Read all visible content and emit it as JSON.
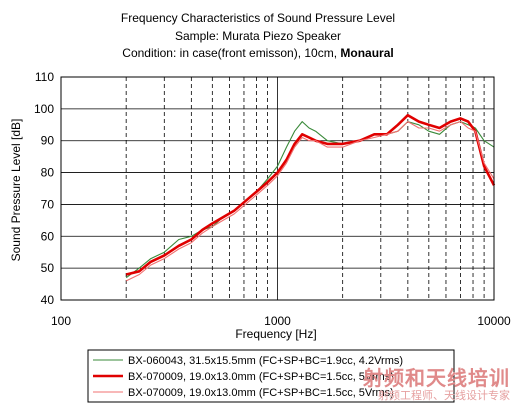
{
  "chart_data": {
    "type": "line",
    "title_lines": [
      {
        "text": "Frequency Characteristics of Sound Pressure Level",
        "bold_part": ""
      },
      {
        "text": "Sample: Murata Piezo Speaker",
        "bold_part": ""
      },
      {
        "text": "Condition:  in case(front emisson), 10cm, ",
        "bold_part": "Monaural"
      }
    ],
    "xlabel": "Frequency  [Hz]",
    "ylabel": "Sound Pressure Level  [dB]",
    "xscale": "log",
    "xlim": [
      100,
      10000
    ],
    "ylim": [
      40,
      110
    ],
    "x_ticks": [
      100,
      1000,
      10000
    ],
    "x_tick_labels": [
      "100",
      "1000",
      "10000"
    ],
    "y_ticks": [
      40,
      50,
      60,
      70,
      80,
      90,
      100,
      110
    ],
    "grid": true,
    "legend_position": "bottom",
    "series": [
      {
        "name": "BX-060043, 31.5x15.5mm (FC+SP+BC=1.9cc, 4.2Vrms)",
        "color": "#3a8a3a",
        "style": "thin",
        "points": [
          [
            200,
            47
          ],
          [
            230,
            50
          ],
          [
            260,
            53
          ],
          [
            300,
            55
          ],
          [
            350,
            59
          ],
          [
            400,
            60
          ],
          [
            450,
            62
          ],
          [
            500,
            63
          ],
          [
            560,
            66
          ],
          [
            630,
            68
          ],
          [
            710,
            71
          ],
          [
            800,
            74
          ],
          [
            900,
            78
          ],
          [
            1000,
            82
          ],
          [
            1100,
            88
          ],
          [
            1200,
            93
          ],
          [
            1300,
            96
          ],
          [
            1400,
            94
          ],
          [
            1500,
            93
          ],
          [
            1700,
            90
          ],
          [
            2000,
            89
          ],
          [
            2400,
            90
          ],
          [
            2800,
            92
          ],
          [
            3200,
            92
          ],
          [
            3600,
            93
          ],
          [
            4000,
            96
          ],
          [
            4500,
            95
          ],
          [
            5000,
            93
          ],
          [
            5600,
            92
          ],
          [
            6300,
            95
          ],
          [
            7000,
            96
          ],
          [
            7600,
            95
          ],
          [
            8200,
            94
          ],
          [
            9000,
            90
          ],
          [
            10000,
            88
          ]
        ]
      },
      {
        "name": "BX-070009, 19.0x13.0mm (FC+SP+BC=1.5cc, 5Vrms)",
        "color": "#e00000",
        "style": "thick",
        "points": [
          [
            200,
            48
          ],
          [
            230,
            49
          ],
          [
            260,
            52
          ],
          [
            300,
            54
          ],
          [
            350,
            57
          ],
          [
            400,
            59
          ],
          [
            450,
            62
          ],
          [
            500,
            64
          ],
          [
            560,
            66
          ],
          [
            630,
            68
          ],
          [
            710,
            71
          ],
          [
            800,
            74
          ],
          [
            900,
            77
          ],
          [
            1000,
            80
          ],
          [
            1100,
            84
          ],
          [
            1200,
            89
          ],
          [
            1300,
            92
          ],
          [
            1400,
            91
          ],
          [
            1500,
            90
          ],
          [
            1700,
            89
          ],
          [
            2000,
            89
          ],
          [
            2400,
            90
          ],
          [
            2800,
            92
          ],
          [
            3200,
            92
          ],
          [
            3600,
            95
          ],
          [
            4000,
            98
          ],
          [
            4500,
            96
          ],
          [
            5000,
            95
          ],
          [
            5600,
            94
          ],
          [
            6300,
            96
          ],
          [
            7000,
            97
          ],
          [
            7600,
            96
          ],
          [
            8200,
            93
          ],
          [
            9000,
            82
          ],
          [
            10000,
            76
          ]
        ]
      },
      {
        "name": "BX-070009, 19.0x13.0mm (FC+SP+BC=1.5cc, 5Vrms)",
        "color": "#f07070",
        "style": "thin",
        "points": [
          [
            200,
            46
          ],
          [
            230,
            48
          ],
          [
            260,
            51
          ],
          [
            300,
            53
          ],
          [
            350,
            56
          ],
          [
            400,
            58
          ],
          [
            450,
            61
          ],
          [
            500,
            63
          ],
          [
            560,
            65
          ],
          [
            630,
            67
          ],
          [
            710,
            70
          ],
          [
            800,
            73
          ],
          [
            900,
            76
          ],
          [
            1000,
            79
          ],
          [
            1100,
            83
          ],
          [
            1200,
            88
          ],
          [
            1300,
            91
          ],
          [
            1400,
            90
          ],
          [
            1500,
            90
          ],
          [
            1700,
            88
          ],
          [
            2000,
            88
          ],
          [
            2400,
            90
          ],
          [
            2800,
            91
          ],
          [
            3200,
            92
          ],
          [
            3600,
            93
          ],
          [
            4000,
            96
          ],
          [
            4500,
            94
          ],
          [
            5000,
            94
          ],
          [
            5600,
            93
          ],
          [
            6300,
            95
          ],
          [
            7000,
            96
          ],
          [
            7600,
            94
          ],
          [
            8200,
            93
          ],
          [
            9000,
            83
          ],
          [
            10000,
            78
          ]
        ]
      }
    ]
  },
  "watermark": {
    "line1": "射频和天线培训",
    "line2": "射频工程师、天线设计专家"
  }
}
